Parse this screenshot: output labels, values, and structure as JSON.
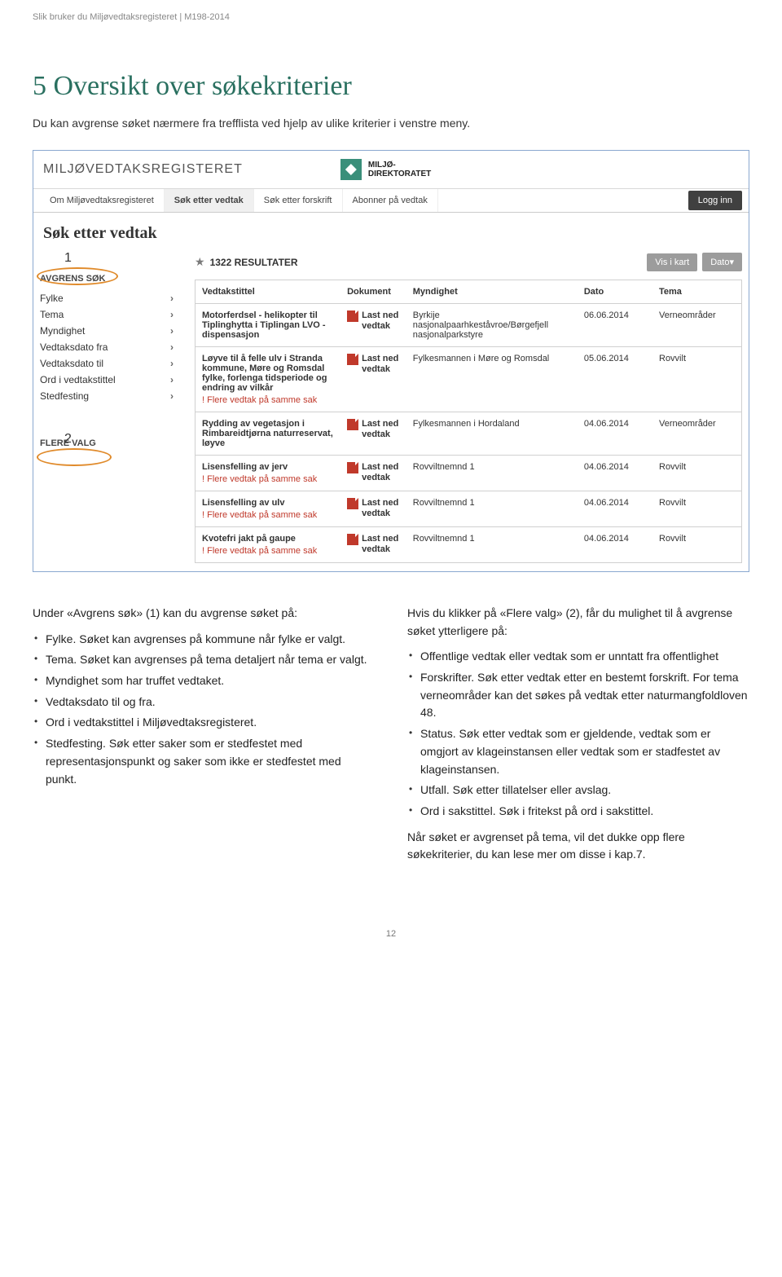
{
  "header": "Slik bruker du Miljøvedtaksregisteret  |  M198-2014",
  "section_title": "5 Oversikt over søkekriterier",
  "intro": "Du kan avgrense søket nærmere fra trefflista ved hjelp av ulike kriterier i venstre meny.",
  "app": {
    "title": "MILJØVEDTAKSREGISTERET",
    "brand_line1": "MILJØ-",
    "brand_line2": "DIREKTORATET",
    "nav": {
      "om": "Om Miljøvedtaksregisteret",
      "sok_vedtak": "Søk etter vedtak",
      "sok_forskrift": "Søk etter forskrift",
      "abonner": "Abonner på vedtak",
      "login": "Logg inn"
    },
    "page_subtitle": "Søk etter vedtak",
    "callout1": "1",
    "callout2": "2",
    "sidebar": {
      "avgrens": "AVGRENS SØK",
      "flere": "FLERE VALG",
      "filters": {
        "fylke": "Fylke",
        "tema": "Tema",
        "myndighet": "Myndighet",
        "dato_fra": "Vedtaksdato fra",
        "dato_til": "Vedtaksdato til",
        "ord": "Ord i vedtakstittel",
        "sted": "Stedfesting"
      }
    },
    "results": {
      "count": "1322 RESULTATER",
      "vis_kart": "Vis i kart",
      "dato_btn": "Dato▾",
      "cols": {
        "tittel": "Vedtakstittel",
        "dokument": "Dokument",
        "myndighet": "Myndighet",
        "dato": "Dato",
        "tema": "Tema"
      },
      "doc_link": "Last ned vedtak",
      "flere_note": "! Flere vedtak på samme sak",
      "rows": [
        {
          "tittel": "Motorferdsel - helikopter til Tiplinghytta i Tiplingan LVO - dispensasjon",
          "note": false,
          "myndighet": "Byrkije nasjonalpaarhkeståvroe/Børgefjell nasjonalparkstyre",
          "dato": "06.06.2014",
          "tema": "Verneområder"
        },
        {
          "tittel": "Løyve til å felle ulv i Stranda kommune, Møre og Romsdal fylke, forlenga tidsperiode og endring av vilkår",
          "note": true,
          "myndighet": "Fylkesmannen i Møre og Romsdal",
          "dato": "05.06.2014",
          "tema": "Rovvilt"
        },
        {
          "tittel": "Rydding av vegetasjon i Rimbareidtjørna naturreservat, løyve",
          "note": false,
          "myndighet": "Fylkesmannen i Hordaland",
          "dato": "04.06.2014",
          "tema": "Verneområder"
        },
        {
          "tittel": "Lisensfelling av jerv",
          "note": true,
          "myndighet": "Rovviltnemnd 1",
          "dato": "04.06.2014",
          "tema": "Rovvilt"
        },
        {
          "tittel": "Lisensfelling av ulv",
          "note": true,
          "myndighet": "Rovviltnemnd 1",
          "dato": "04.06.2014",
          "tema": "Rovvilt"
        },
        {
          "tittel": "Kvotefri jakt på gaupe",
          "note": true,
          "myndighet": "Rovviltnemnd 1",
          "dato": "04.06.2014",
          "tema": "Rovvilt"
        }
      ]
    }
  },
  "left_col": {
    "p1": "Under «Avgrens søk» (1) kan du avgrense søket på:",
    "li1": "Fylke. Søket kan avgrenses på kommune når fylke er valgt.",
    "li2": "Tema. Søket kan avgrenses på tema detaljert når tema er valgt.",
    "li3": "Myndighet som har truffet vedtaket.",
    "li4": "Vedtaksdato til og fra.",
    "li5": "Ord i vedtakstittel i Miljøvedtaksregisteret.",
    "li6": "Stedfesting. Søk etter saker som er stedfestet med representasjonspunkt og saker som ikke er stedfestet med punkt."
  },
  "right_col": {
    "p1": "Hvis du klikker på «Flere valg» (2), får du mulighet til å avgrense søket ytterligere på:",
    "li1": "Offentlige vedtak eller vedtak som er unntatt fra offentlighet",
    "li2": "Forskrifter. Søk etter vedtak etter en bestemt forskrift. For tema verneområder kan det søkes på vedtak etter naturmangfoldloven 48.",
    "li3": "Status. Søk etter vedtak som er gjeldende, vedtak som er omgjort av klageinstansen eller vedtak som er stadfestet av klageinstansen.",
    "li4": "Utfall. Søk etter tillatelser eller avslag.",
    "li5": "Ord i sakstittel. Søk i fritekst på ord i sakstittel.",
    "p2": "Når søket er avgrenset på tema, vil det dukke opp flere søkekriterier, du kan lese mer om disse i kap.7."
  },
  "page_num": "12"
}
